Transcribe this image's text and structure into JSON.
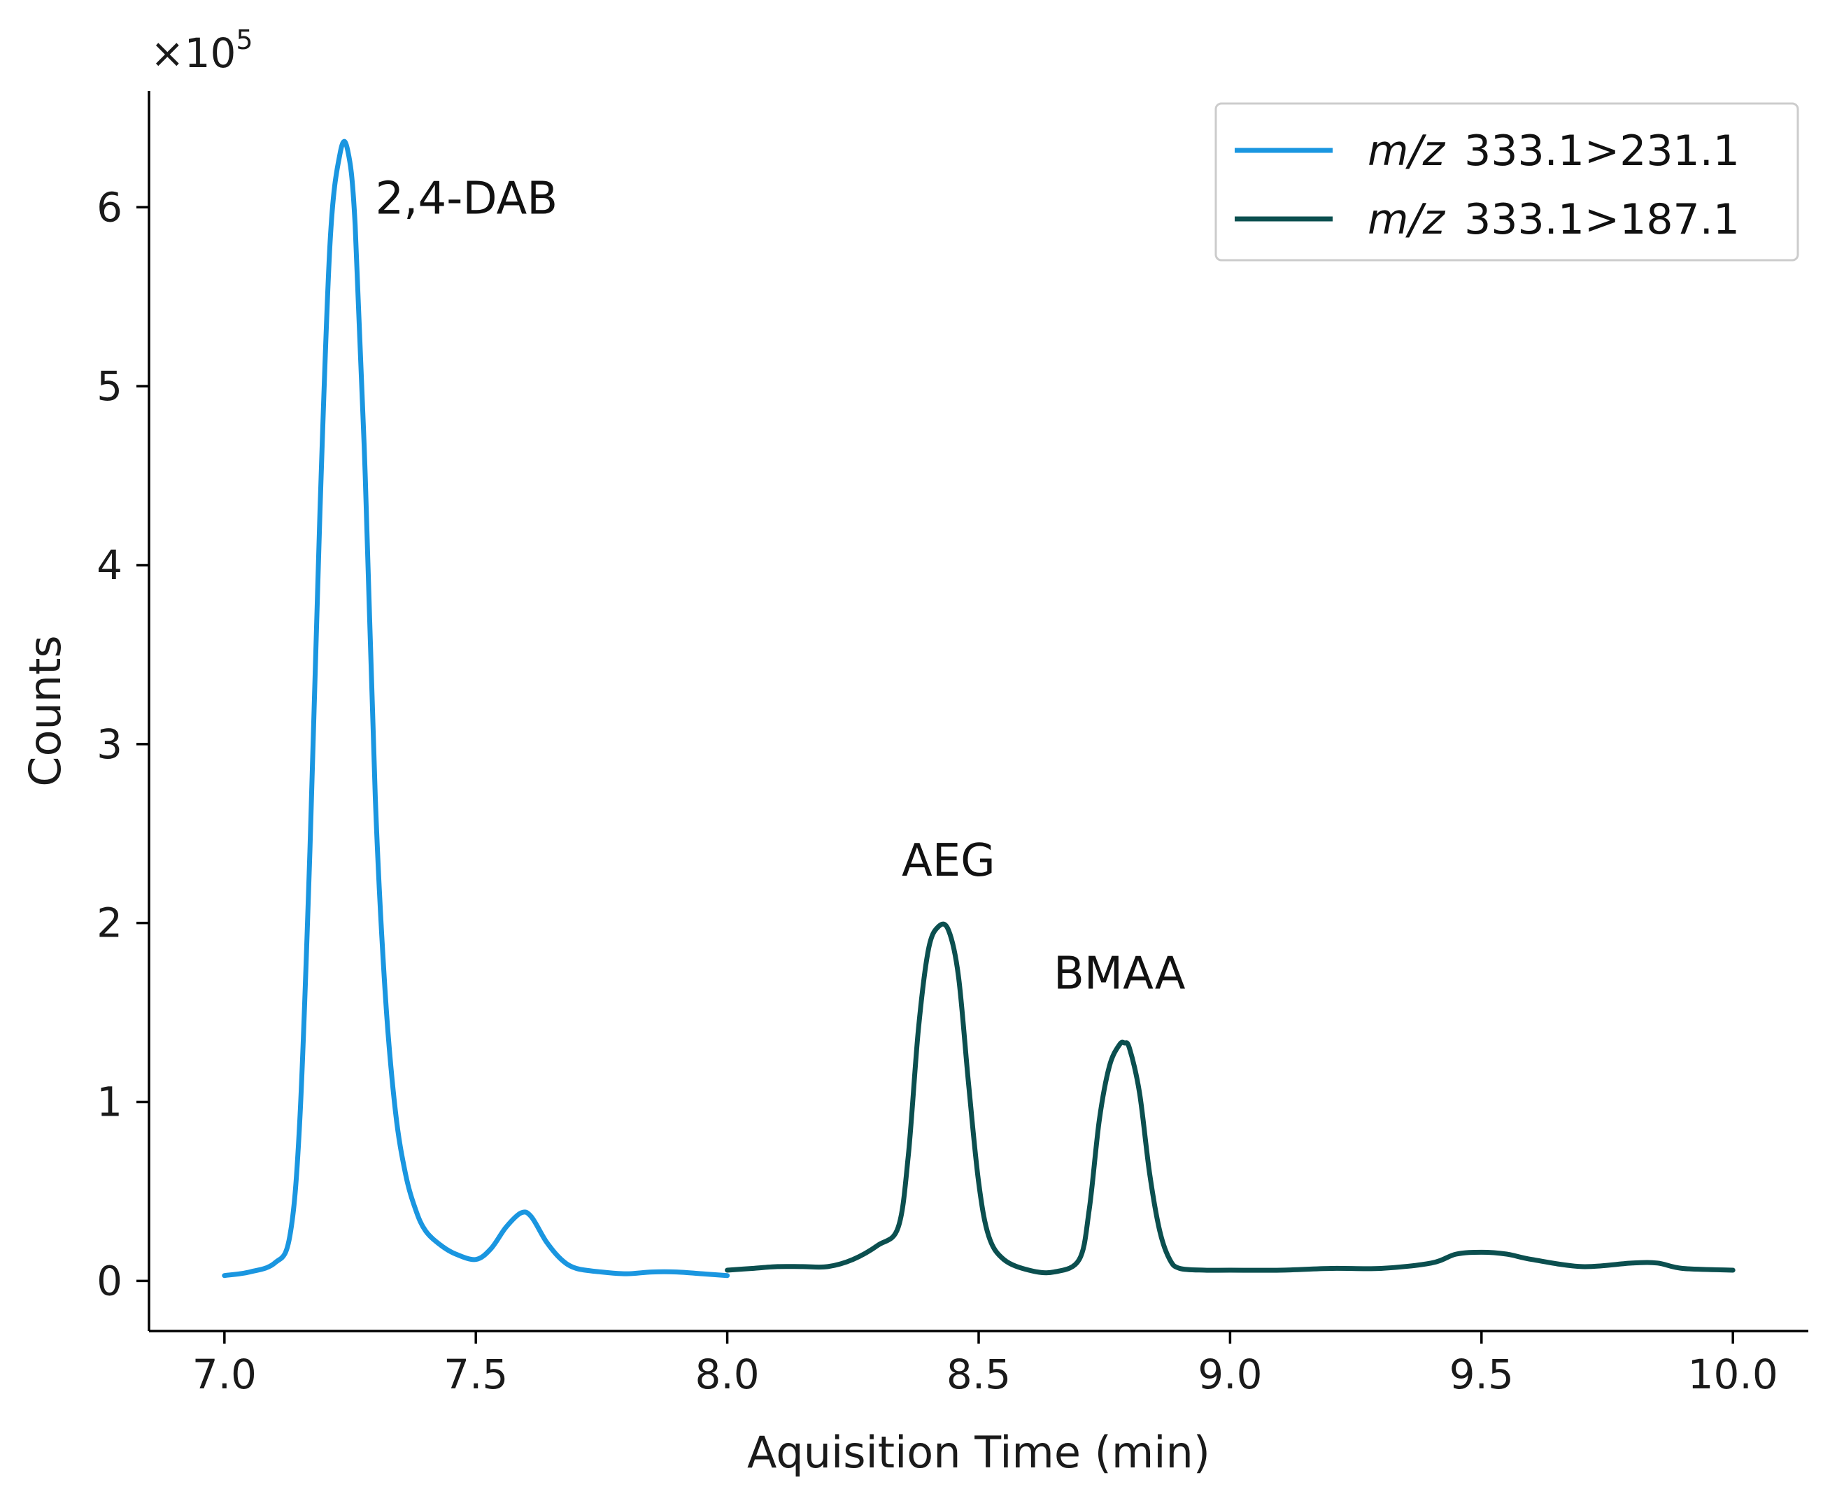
{
  "chart_data": {
    "type": "line",
    "xlabel": "Aquisition Time (min)",
    "ylabel": "Counts",
    "y_scale_label": "×10",
    "y_scale_exponent": "5",
    "xlim": [
      6.85,
      10.15
    ],
    "ylim": [
      -0.28,
      6.65
    ],
    "x_ticks": [
      7.0,
      7.5,
      8.0,
      8.5,
      9.0,
      9.5,
      10.0
    ],
    "x_tick_labels": [
      "7.0",
      "7.5",
      "8.0",
      "8.5",
      "9.0",
      "9.5",
      "10.0"
    ],
    "y_ticks": [
      0,
      1,
      2,
      3,
      4,
      5,
      6
    ],
    "y_tick_labels": [
      "0",
      "1",
      "2",
      "3",
      "4",
      "5",
      "6"
    ],
    "legend": {
      "position": "top-right"
    },
    "series": [
      {
        "name": "m/z 333.1>231.1",
        "name_italic": "m/z",
        "name_rest": "333.1>231.1",
        "color": "#1a96e0",
        "x": [
          7.0,
          7.05,
          7.1,
          7.13,
          7.15,
          7.17,
          7.19,
          7.21,
          7.23,
          7.245,
          7.26,
          7.28,
          7.3,
          7.32,
          7.34,
          7.36,
          7.38,
          7.4,
          7.43,
          7.46,
          7.5,
          7.53,
          7.56,
          7.59,
          7.61,
          7.64,
          7.67,
          7.7,
          7.75,
          7.8,
          7.85,
          7.9,
          7.95,
          8.0
        ],
        "y": [
          0.03,
          0.05,
          0.1,
          0.25,
          0.9,
          2.4,
          4.3,
          5.8,
          6.3,
          6.32,
          5.9,
          4.5,
          2.7,
          1.6,
          0.95,
          0.6,
          0.4,
          0.28,
          0.2,
          0.15,
          0.12,
          0.18,
          0.3,
          0.38,
          0.36,
          0.22,
          0.12,
          0.07,
          0.05,
          0.04,
          0.05,
          0.05,
          0.04,
          0.03
        ]
      },
      {
        "name": "m/z 333.1>187.1",
        "name_italic": "m/z",
        "name_rest": "333.1>187.1",
        "color": "#0b4f4f",
        "x": [
          8.0,
          8.05,
          8.1,
          8.15,
          8.2,
          8.25,
          8.3,
          8.34,
          8.36,
          8.38,
          8.4,
          8.42,
          8.44,
          8.46,
          8.48,
          8.5,
          8.52,
          8.55,
          8.6,
          8.65,
          8.7,
          8.72,
          8.74,
          8.76,
          8.78,
          8.79,
          8.8,
          8.82,
          8.84,
          8.86,
          8.88,
          8.9,
          8.95,
          9.0,
          9.1,
          9.2,
          9.3,
          9.4,
          9.45,
          9.5,
          9.55,
          9.6,
          9.7,
          9.8,
          9.85,
          9.9,
          10.0
        ],
        "y": [
          0.06,
          0.07,
          0.08,
          0.08,
          0.08,
          0.12,
          0.2,
          0.3,
          0.7,
          1.4,
          1.85,
          1.98,
          1.96,
          1.7,
          1.1,
          0.55,
          0.25,
          0.12,
          0.06,
          0.05,
          0.12,
          0.4,
          0.9,
          1.2,
          1.32,
          1.33,
          1.3,
          1.05,
          0.6,
          0.28,
          0.12,
          0.07,
          0.06,
          0.06,
          0.06,
          0.07,
          0.07,
          0.1,
          0.15,
          0.16,
          0.15,
          0.12,
          0.08,
          0.1,
          0.1,
          0.07,
          0.06
        ]
      }
    ],
    "annotations": [
      {
        "text": "2,4-DAB",
        "x": 7.3,
        "y": 6.05,
        "anchor": "start"
      },
      {
        "text": "AEG",
        "x": 8.44,
        "y": 2.35,
        "anchor": "middle"
      },
      {
        "text": "BMAA",
        "x": 8.78,
        "y": 1.72,
        "anchor": "middle"
      }
    ]
  }
}
